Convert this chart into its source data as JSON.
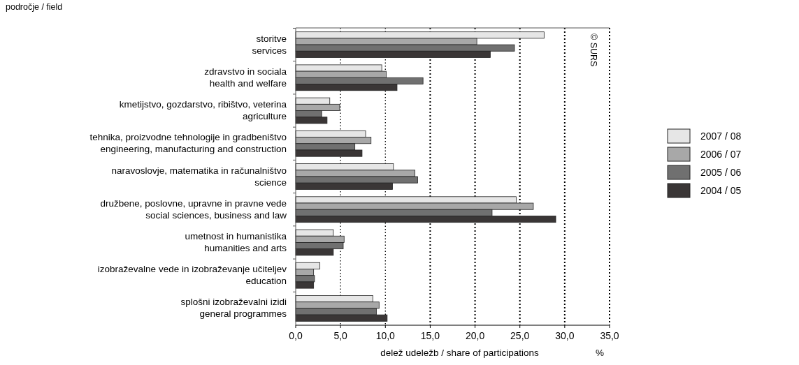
{
  "chart_data": {
    "type": "bar",
    "orientation": "horizontal",
    "ylabel": "področje / field",
    "xlabel": "delež udeležb / share of participations",
    "annotations": [
      "%",
      "© SURS"
    ],
    "categories": [
      "storitve\nservices",
      "zdravstvo in sociala\nhealth and welfare",
      "kmetijstvo, gozdarstvo, ribištvo, veterina\nagriculture",
      "tehnika, proizvodne tehnologije in gradbeništvo\nengineering, manufacturing and construction",
      "naravoslovje, matematika in računalništvo\nscience",
      "družbene, poslovne, upravne in pravne vede\nsocial sciences, business and law",
      "umetnost in humanistika\nhumanities and arts",
      "izobraževalne vede in izobraževanje učiteljev\neducation",
      "splošni izobraževalni izidi\ngeneral programmes"
    ],
    "series": [
      {
        "name": "2007 / 08",
        "color": "#e6e6e6",
        "values": [
          27.7,
          9.6,
          3.8,
          7.8,
          10.9,
          24.6,
          4.2,
          2.7,
          8.6
        ]
      },
      {
        "name": "2006 / 07",
        "color": "#a8a8a8",
        "values": [
          20.2,
          10.1,
          4.9,
          8.4,
          13.3,
          26.5,
          5.4,
          2.0,
          9.3
        ]
      },
      {
        "name": "2005 / 06",
        "color": "#707070",
        "values": [
          24.4,
          14.2,
          2.9,
          6.6,
          13.6,
          21.9,
          5.3,
          2.1,
          9.0
        ]
      },
      {
        "name": "2004 / 05",
        "color": "#3a3636",
        "values": [
          21.7,
          11.3,
          3.5,
          7.4,
          10.8,
          29.0,
          4.2,
          2.0,
          10.2
        ]
      }
    ],
    "xlim": [
      0,
      35
    ],
    "xticks": [
      {
        "value": 0,
        "label": "0,0"
      },
      {
        "value": 5,
        "label": "5,0"
      },
      {
        "value": 10,
        "label": "10,0"
      },
      {
        "value": 15,
        "label": "15,0"
      },
      {
        "value": 20,
        "label": "20,0"
      },
      {
        "value": 25,
        "label": "25,0"
      },
      {
        "value": 30,
        "label": "30,0"
      },
      {
        "value": 35,
        "label": "35,0"
      }
    ],
    "grid": "x",
    "legend": "right"
  }
}
